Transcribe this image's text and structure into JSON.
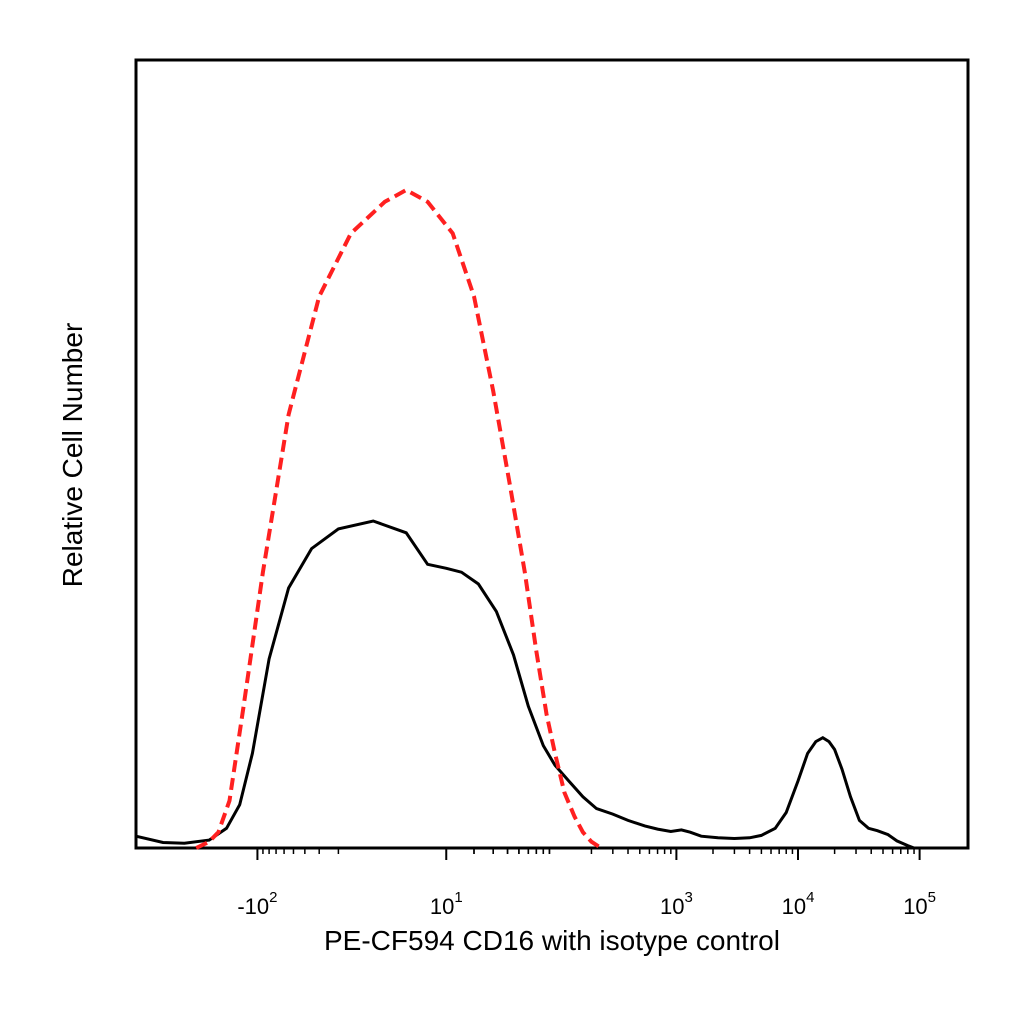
{
  "chart_data": {
    "type": "line",
    "title": "",
    "xlabel": "PE-CF594 CD16 with isotype control",
    "ylabel": "Relative Cell Number",
    "x_scale": "biexponential",
    "x_tick_labels": [
      {
        "base": "-10",
        "exp": "2",
        "value": -100
      },
      {
        "base": "10",
        "exp": "1",
        "value": 10
      },
      {
        "base": "10",
        "exp": "3",
        "value": 1000
      },
      {
        "base": "10",
        "exp": "4",
        "value": 10000
      },
      {
        "base": "10",
        "exp": "5",
        "value": 100000
      }
    ],
    "xlim": [
      -1000,
      250000
    ],
    "ylim": [
      0,
      100
    ],
    "grid": false,
    "legend": "none",
    "series": [
      {
        "color": "#000000",
        "style": "solid",
        "points": [
          [
            -1000,
            1.5
          ],
          [
            -600,
            0.7
          ],
          [
            -400,
            0.6
          ],
          [
            -250,
            1.0
          ],
          [
            -180,
            2.5
          ],
          [
            -140,
            5.5
          ],
          [
            -110,
            12
          ],
          [
            -80,
            24
          ],
          [
            -55,
            33
          ],
          [
            -35,
            38
          ],
          [
            -20,
            40.5
          ],
          [
            -8,
            41.5
          ],
          [
            0,
            40
          ],
          [
            5,
            36
          ],
          [
            10,
            35.5
          ],
          [
            15,
            35
          ],
          [
            22,
            33.5
          ],
          [
            32,
            30
          ],
          [
            45,
            24.5
          ],
          [
            60,
            18
          ],
          [
            80,
            13
          ],
          [
            100,
            10.5
          ],
          [
            130,
            8.5
          ],
          [
            170,
            6.5
          ],
          [
            220,
            5
          ],
          [
            300,
            4.3
          ],
          [
            400,
            3.5
          ],
          [
            550,
            2.8
          ],
          [
            700,
            2.4
          ],
          [
            900,
            2.1
          ],
          [
            1100,
            2.3
          ],
          [
            1300,
            2.0
          ],
          [
            1600,
            1.5
          ],
          [
            2200,
            1.3
          ],
          [
            3000,
            1.2
          ],
          [
            4000,
            1.3
          ],
          [
            5000,
            1.6
          ],
          [
            6500,
            2.5
          ],
          [
            8000,
            4.5
          ],
          [
            10000,
            8.5
          ],
          [
            12000,
            12
          ],
          [
            14000,
            13.5
          ],
          [
            16000,
            14
          ],
          [
            18000,
            13.5
          ],
          [
            20000,
            12.5
          ],
          [
            23000,
            10
          ],
          [
            27000,
            6.5
          ],
          [
            32000,
            3.5
          ],
          [
            38000,
            2.5
          ],
          [
            45000,
            2.2
          ],
          [
            55000,
            1.7
          ],
          [
            65000,
            0.9
          ],
          [
            80000,
            0.3
          ],
          [
            90000,
            0
          ]
        ]
      },
      {
        "color": "#ff2020",
        "style": "dashed",
        "points": [
          [
            -320,
            0
          ],
          [
            -250,
            0.8
          ],
          [
            -210,
            2
          ],
          [
            -170,
            6
          ],
          [
            -130,
            18
          ],
          [
            -90,
            35
          ],
          [
            -55,
            55
          ],
          [
            -30,
            70
          ],
          [
            -15,
            78
          ],
          [
            -5,
            82
          ],
          [
            0,
            83.5
          ],
          [
            5,
            82
          ],
          [
            12,
            78
          ],
          [
            20,
            70
          ],
          [
            30,
            58
          ],
          [
            42,
            46
          ],
          [
            56,
            35
          ],
          [
            70,
            25
          ],
          [
            85,
            17
          ],
          [
            100,
            12
          ],
          [
            120,
            7
          ],
          [
            145,
            4
          ],
          [
            170,
            2
          ],
          [
            200,
            0.8
          ],
          [
            240,
            0
          ]
        ]
      }
    ]
  }
}
